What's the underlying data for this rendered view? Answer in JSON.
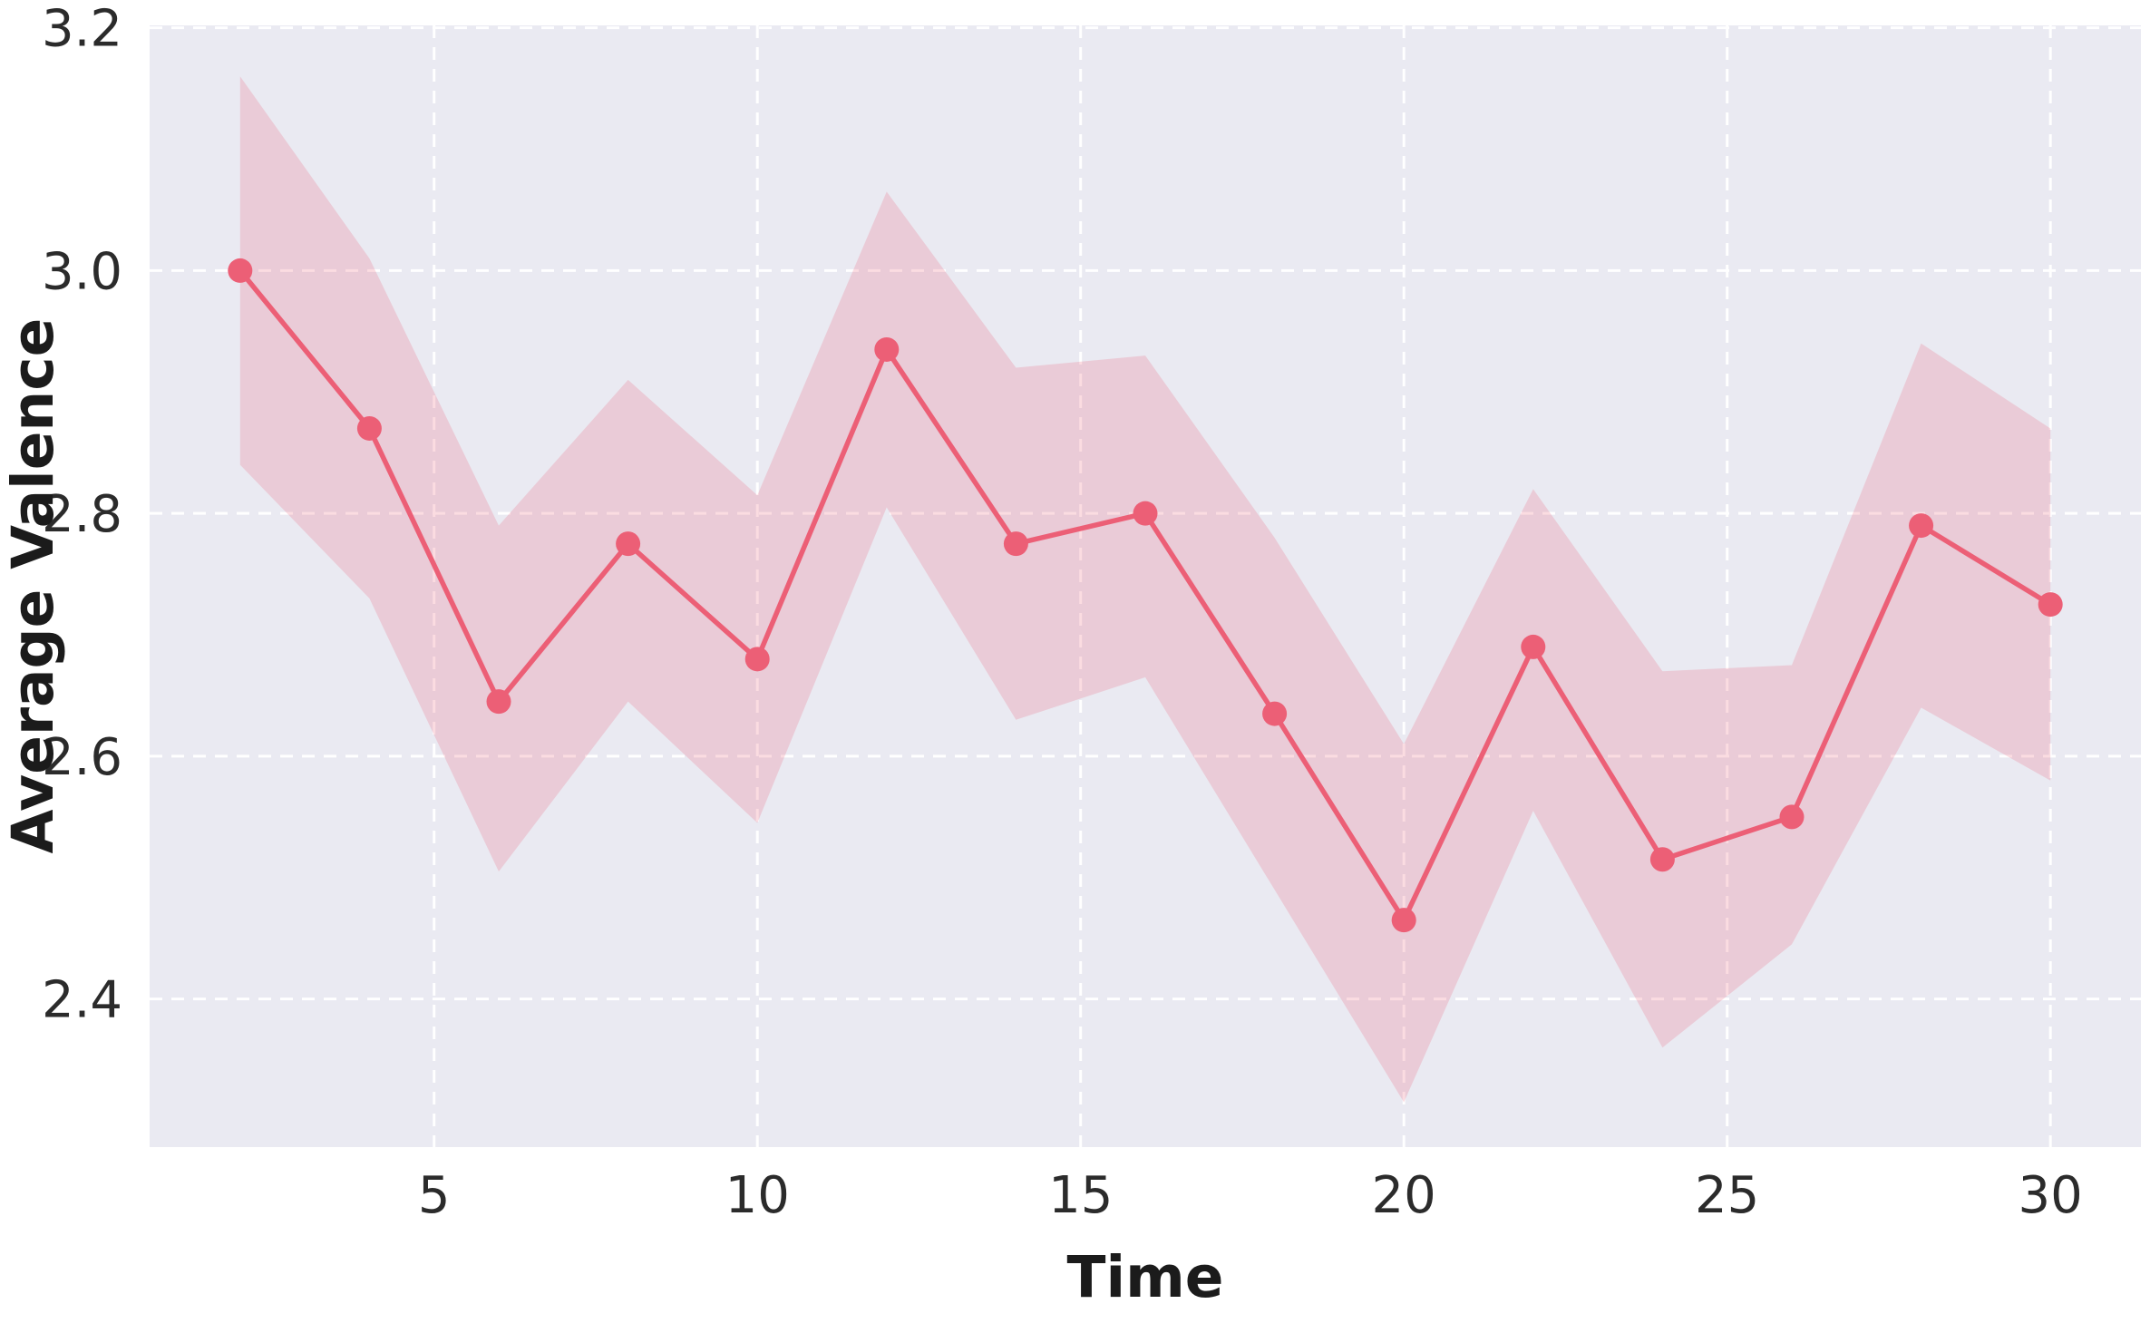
{
  "chart_data": {
    "type": "line",
    "title": "",
    "xlabel": "Time",
    "ylabel": "Average Valence",
    "x": [
      2,
      4,
      6,
      8,
      10,
      12,
      14,
      16,
      18,
      20,
      22,
      24,
      26,
      28,
      30
    ],
    "series": [
      {
        "name": "Average Valence",
        "values": [
          3.0,
          2.87,
          2.645,
          2.775,
          2.68,
          2.935,
          2.775,
          2.8,
          2.635,
          2.465,
          2.69,
          2.515,
          2.55,
          2.79,
          2.725
        ],
        "ci_upper": [
          3.16,
          3.01,
          2.79,
          2.91,
          2.815,
          3.065,
          2.92,
          2.93,
          2.78,
          2.61,
          2.82,
          2.67,
          2.675,
          2.94,
          2.87
        ],
        "ci_lower": [
          2.84,
          2.73,
          2.505,
          2.645,
          2.545,
          2.805,
          2.63,
          2.665,
          2.49,
          2.315,
          2.555,
          2.36,
          2.445,
          2.64,
          2.58
        ]
      }
    ],
    "xlim": [
      0.6,
      31.4
    ],
    "ylim": [
      2.278,
      3.202
    ],
    "xticks": [
      5,
      10,
      15,
      20,
      25,
      30
    ],
    "xtick_labels": [
      "5",
      "10",
      "15",
      "20",
      "25",
      "30"
    ],
    "yticks": [
      2.4,
      2.6,
      2.8,
      3.0,
      3.2
    ],
    "ytick_labels": [
      "2.4",
      "2.6",
      "2.8",
      "3.0",
      "3.2"
    ],
    "grid": true,
    "grid_style": "dashed",
    "legend": false,
    "colors": {
      "line": "#ec5f76",
      "marker": "#ec5f76",
      "band": "#ec5f76",
      "band_alpha": 0.22,
      "plot_bg": "#eaeaf2",
      "figure_bg": "#ffffff",
      "grid": "#ffffff",
      "tick_text": "#2b2b2b",
      "label_text": "#1b1b1b"
    }
  }
}
